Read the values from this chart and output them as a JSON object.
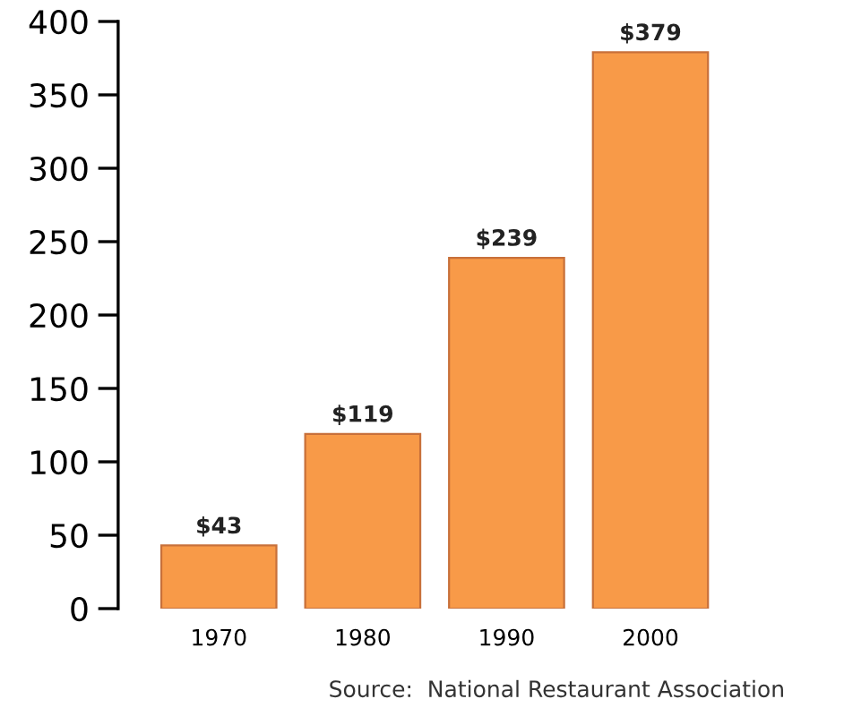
{
  "chart_data": {
    "type": "bar",
    "categories": [
      "1970",
      "1980",
      "1990",
      "2000"
    ],
    "values": [
      43,
      119,
      239,
      379
    ],
    "value_labels": [
      "$43",
      "$119",
      "$239",
      "$379"
    ],
    "color": "#f89a48",
    "ylim": [
      0,
      400
    ],
    "yticks": [
      0,
      50,
      100,
      150,
      200,
      250,
      300,
      350,
      400
    ],
    "grid": false,
    "legend": false,
    "annotations": [
      "Source:  National Restaurant Association"
    ]
  }
}
